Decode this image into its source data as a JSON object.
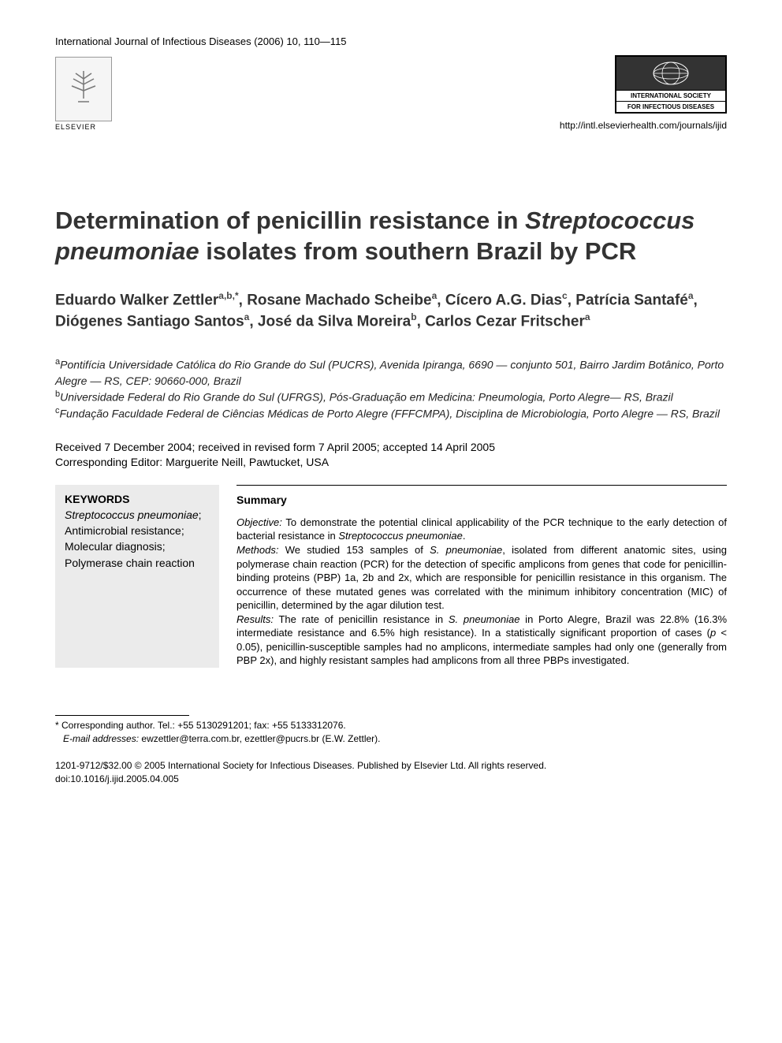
{
  "journal_citation": "International Journal of Infectious Diseases (2006) 10, 110—115",
  "publisher_name": "ELSEVIER",
  "society_line1": "INTERNATIONAL SOCIETY",
  "society_line2": "FOR INFECTIOUS DISEASES",
  "journal_url": "http://intl.elsevierhealth.com/journals/ijid",
  "title_part1": "Determination of penicillin resistance in",
  "title_italic": "Streptococcus pneumoniae",
  "title_part2": " isolates from southern Brazil by PCR",
  "authors_html": "Eduardo Walker Zettler<sup>a,b,*</sup>, Rosane Machado Scheibe<sup>a</sup>, Cícero A.G. Dias<sup>c</sup>, Patrícia Santafé<sup>a</sup>, Diógenes Santiago Santos<sup>a</sup>, José da Silva Moreira<sup>b</sup>, Carlos Cezar Fritscher<sup>a</sup>",
  "affiliation_a": "Pontifícia Universidade Católica do Rio Grande do Sul (PUCRS), Avenida Ipiranga, 6690 — conjunto 501, Bairro Jardim Botânico, Porto Alegre — RS, CEP: 90660-000, Brazil",
  "affiliation_b": "Universidade Federal do Rio Grande do Sul (UFRGS), Pós-Graduação em Medicina: Pneumologia, Porto Alegre— RS, Brazil",
  "affiliation_c": "Fundação Faculdade Federal de Ciências Médicas de Porto Alegre (FFFCMPA), Disciplina de Microbiologia, Porto Alegre — RS, Brazil",
  "received_line": "Received 7 December 2004; received in revised form 7 April 2005; accepted 14 April 2005",
  "editor_line": "Corresponding Editor: Marguerite Neill, Pawtucket, USA",
  "keywords_heading": "KEYWORDS",
  "keywords_italic": "Streptococcus pneumoniae",
  "keywords_rest": "; Antimicrobial resistance; Molecular diagnosis; Polymerase chain reaction",
  "summary_heading": "Summary",
  "summary": {
    "objective_label": "Objective:",
    "objective_text": " To demonstrate the potential clinical applicability of the PCR technique to the early detection of bacterial resistance in ",
    "objective_italic": "Streptococcus pneumoniae",
    "objective_end": ".",
    "methods_label": "Methods:",
    "methods_text1": " We studied 153 samples of ",
    "methods_italic": "S. pneumoniae",
    "methods_text2": ", isolated from different anatomic sites, using polymerase chain reaction (PCR) for the detection of specific amplicons from genes that code for penicillin-binding proteins (PBP) 1a, 2b and 2x, which are responsible for penicillin resistance in this organism. The occurrence of these mutated genes was correlated with the minimum inhibitory concentration (MIC) of penicillin, determined by the agar dilution test.",
    "results_label": "Results:",
    "results_text1": " The rate of penicillin resistance in ",
    "results_italic": "S. pneumoniae",
    "results_text2": " in Porto Alegre, Brazil was 22.8% (16.3% intermediate resistance and 6.5% high resistance). In a statistically significant proportion of cases (",
    "results_p": "p",
    "results_text3": " < 0.05), penicillin-susceptible samples had no amplicons, intermediate samples had only one (generally from PBP 2x), and highly resistant samples had amplicons from all three PBPs investigated."
  },
  "footnote_corresponding": "* Corresponding author. Tel.: +55 5130291201; fax: +55 5133312076.",
  "footnote_email_label": "E-mail addresses:",
  "footnote_email_text": " ewzettler@terra.com.br, ezettler@pucrs.br (E.W. Zettler).",
  "issn_line": "1201-9712/$32.00 © 2005 International Society for Infectious Diseases. Published by Elsevier Ltd. All rights reserved.",
  "doi_line": "doi:10.1016/j.ijid.2005.04.005"
}
